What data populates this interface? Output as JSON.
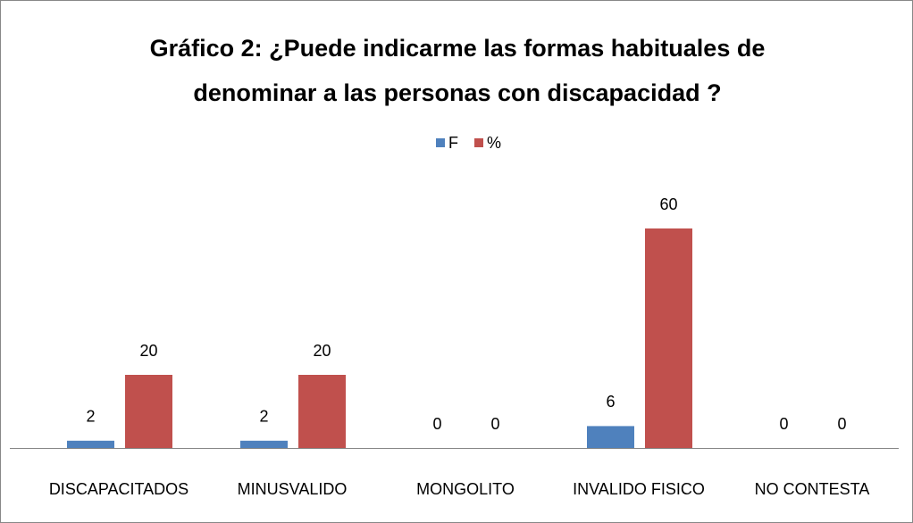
{
  "chart_data": {
    "type": "bar",
    "title": "Gráfico 2: ¿Puede indicarme las formas habituales de denominar a las personas con discapacidad ?",
    "categories": [
      "DISCAPACITADOS",
      "MINUSVALIDO",
      "MONGOLITO",
      "INVALIDO FISICO",
      "NO CONTESTA"
    ],
    "series": [
      {
        "name": "F",
        "color": "#4f81bd",
        "values": [
          2,
          2,
          0,
          6,
          0
        ]
      },
      {
        "name": "%",
        "color": "#c0504d",
        "values": [
          20,
          20,
          0,
          60,
          0
        ]
      }
    ],
    "legend": "top"
  }
}
